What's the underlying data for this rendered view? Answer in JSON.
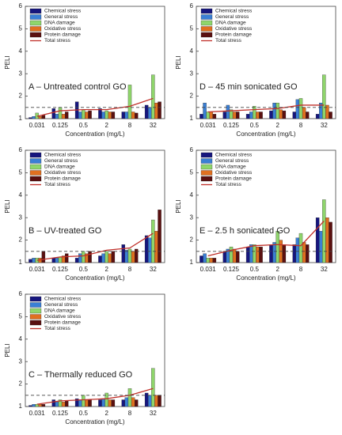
{
  "chart_data": [
    {
      "type": "bar",
      "title": "A – Untreated control GO",
      "xlabel": "Concentration (mg/L)",
      "ylabel": "PELI",
      "categories": [
        "0.031",
        "0.125",
        "0.5",
        "2",
        "8",
        "32"
      ],
      "ylim": [
        1,
        6
      ],
      "yticks": [
        1,
        2,
        3,
        4,
        5,
        6
      ],
      "reference_line": 1.5,
      "series": [
        {
          "name": "Chemical stress",
          "color": "#16167e",
          "values": [
            1.05,
            1.45,
            1.75,
            1.45,
            1.3,
            1.6
          ]
        },
        {
          "name": "General stress",
          "color": "#3a7fd5",
          "values": [
            1.1,
            1.2,
            1.3,
            1.3,
            1.3,
            1.5
          ]
        },
        {
          "name": "DNA damage",
          "color": "#8fd66b",
          "values": [
            1.25,
            1.5,
            1.4,
            1.35,
            2.5,
            2.95
          ]
        },
        {
          "name": "Oxidative stress",
          "color": "#e07020",
          "values": [
            1.1,
            1.2,
            1.3,
            1.3,
            1.3,
            1.7
          ]
        },
        {
          "name": "Protein damage",
          "color": "#5a1010",
          "values": [
            1.15,
            1.3,
            1.35,
            1.3,
            1.25,
            1.75
          ]
        },
        {
          "name": "Total stress",
          "color": "#c0302a",
          "type": "line",
          "values": [
            1.1,
            1.35,
            1.4,
            1.4,
            1.55,
            1.9
          ]
        }
      ]
    },
    {
      "type": "bar",
      "title": "D – 45 min sonicated GO",
      "xlabel": "Concentration (mg/L)",
      "ylabel": "PELI",
      "categories": [
        "0.031",
        "0.125",
        "0.5",
        "2",
        "8",
        "32"
      ],
      "ylim": [
        1,
        6
      ],
      "yticks": [
        1,
        2,
        3,
        4,
        5,
        6
      ],
      "reference_line": 1.5,
      "series": [
        {
          "name": "Chemical stress",
          "color": "#16167e",
          "values": [
            1.2,
            1.3,
            1.2,
            1.35,
            1.3,
            1.2
          ]
        },
        {
          "name": "General stress",
          "color": "#3a7fd5",
          "values": [
            1.7,
            1.6,
            1.3,
            1.7,
            1.85,
            1.7
          ]
        },
        {
          "name": "DNA damage",
          "color": "#8fd66b",
          "values": [
            1.3,
            1.4,
            1.55,
            1.7,
            1.9,
            2.95
          ]
        },
        {
          "name": "Oxidative stress",
          "color": "#e07020",
          "values": [
            1.3,
            1.3,
            1.3,
            1.4,
            1.5,
            1.6
          ]
        },
        {
          "name": "Protein damage",
          "color": "#5a1010",
          "values": [
            1.2,
            1.3,
            1.3,
            1.35,
            1.3,
            1.3
          ]
        },
        {
          "name": "Total stress",
          "color": "#c0302a",
          "type": "line",
          "values": [
            1.3,
            1.35,
            1.4,
            1.45,
            1.6,
            1.6
          ]
        }
      ]
    },
    {
      "type": "bar",
      "title": "B – UV-treated GO",
      "xlabel": "Concentration (mg/L)",
      "ylabel": "PELI",
      "categories": [
        "0.031",
        "0.125",
        "0.5",
        "2",
        "8",
        "32"
      ],
      "ylim": [
        1,
        6
      ],
      "yticks": [
        1,
        2,
        3,
        4,
        5,
        6
      ],
      "reference_line": 1.5,
      "series": [
        {
          "name": "Chemical stress",
          "color": "#16167e",
          "values": [
            1.15,
            1.2,
            1.2,
            1.3,
            1.8,
            2.2
          ]
        },
        {
          "name": "General stress",
          "color": "#3a7fd5",
          "values": [
            1.2,
            1.2,
            1.4,
            1.4,
            1.55,
            2.1
          ]
        },
        {
          "name": "DNA damage",
          "color": "#8fd66b",
          "values": [
            1.2,
            1.25,
            1.5,
            1.5,
            1.6,
            2.9
          ]
        },
        {
          "name": "Oxidative stress",
          "color": "#e07020",
          "values": [
            1.2,
            1.3,
            1.4,
            1.4,
            1.5,
            2.4
          ]
        },
        {
          "name": "Protein damage",
          "color": "#5a1010",
          "values": [
            1.5,
            1.4,
            1.5,
            1.5,
            1.6,
            3.35
          ]
        },
        {
          "name": "Total stress",
          "color": "#c0302a",
          "type": "line",
          "values": [
            1.1,
            1.25,
            1.3,
            1.55,
            1.65,
            2.3
          ]
        }
      ]
    },
    {
      "type": "bar",
      "title": "E – 2.5 h sonicated GO",
      "xlabel": "Concentration (mg/L)",
      "ylabel": "PELI",
      "categories": [
        "0.031",
        "0.125",
        "0.5",
        "2",
        "8",
        "32"
      ],
      "ylim": [
        1,
        6
      ],
      "yticks": [
        1,
        2,
        3,
        4,
        5,
        6
      ],
      "reference_line": 1.5,
      "series": [
        {
          "name": "Chemical stress",
          "color": "#16167e",
          "values": [
            1.3,
            1.5,
            1.7,
            1.8,
            1.8,
            3.0
          ]
        },
        {
          "name": "General stress",
          "color": "#3a7fd5",
          "values": [
            1.4,
            1.6,
            1.8,
            1.9,
            2.1,
            2.4
          ]
        },
        {
          "name": "DNA damage",
          "color": "#8fd66b",
          "values": [
            1.2,
            1.7,
            1.8,
            2.4,
            2.3,
            3.8
          ]
        },
        {
          "name": "Oxidative stress",
          "color": "#e07020",
          "values": [
            1.2,
            1.6,
            1.7,
            2.0,
            1.9,
            3.0
          ]
        },
        {
          "name": "Protein damage",
          "color": "#5a1010",
          "values": [
            1.2,
            1.5,
            1.7,
            1.8,
            1.8,
            2.8
          ]
        },
        {
          "name": "Total stress",
          "color": "#c0302a",
          "type": "line",
          "values": [
            1.3,
            1.55,
            1.75,
            1.8,
            1.75,
            2.85
          ]
        }
      ]
    },
    {
      "type": "bar",
      "title": "C – Thermally reduced GO",
      "xlabel": "Concentration (mg/L)",
      "ylabel": "PELI",
      "categories": [
        "0.031",
        "0.125",
        "0.5",
        "2",
        "8",
        "32"
      ],
      "ylim": [
        1,
        6
      ],
      "yticks": [
        1,
        2,
        3,
        4,
        5,
        6
      ],
      "reference_line": 1.5,
      "series": [
        {
          "name": "Chemical stress",
          "color": "#16167e",
          "values": [
            1.05,
            1.3,
            1.35,
            1.3,
            1.3,
            1.6
          ]
        },
        {
          "name": "General stress",
          "color": "#3a7fd5",
          "values": [
            1.1,
            1.2,
            1.3,
            1.35,
            1.4,
            1.5
          ]
        },
        {
          "name": "DNA damage",
          "color": "#8fd66b",
          "values": [
            1.1,
            1.3,
            1.5,
            1.6,
            1.8,
            2.7
          ]
        },
        {
          "name": "Oxidative stress",
          "color": "#e07020",
          "values": [
            1.1,
            1.2,
            1.3,
            1.3,
            1.4,
            1.5
          ]
        },
        {
          "name": "Protein damage",
          "color": "#5a1010",
          "values": [
            1.1,
            1.25,
            1.3,
            1.3,
            1.3,
            1.5
          ]
        },
        {
          "name": "Total stress",
          "color": "#c0302a",
          "type": "line",
          "values": [
            1.1,
            1.25,
            1.3,
            1.35,
            1.5,
            1.8
          ]
        }
      ]
    }
  ]
}
